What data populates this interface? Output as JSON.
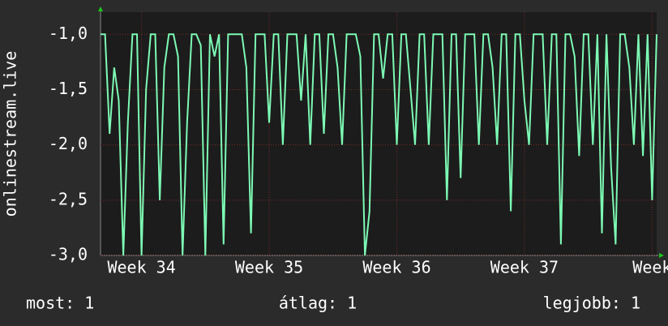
{
  "chart_data": {
    "type": "line",
    "ylabel": "onlinestream.live",
    "x": [
      0,
      0.25,
      0.5,
      0.75,
      1,
      1.25,
      1.5,
      1.75,
      2,
      2.25,
      2.5,
      2.75,
      3,
      3.25,
      3.5,
      3.75,
      4,
      4.25,
      4.5,
      4.75,
      5,
      5.25,
      5.5,
      5.75,
      6,
      6.25,
      6.5,
      6.75,
      7,
      7.25,
      7.5,
      7.75,
      8,
      8.25,
      8.5,
      8.75,
      9,
      9.25,
      9.5,
      9.75,
      10,
      10.25,
      10.5,
      10.75,
      11,
      11.25,
      11.5,
      11.75,
      12,
      12.25,
      12.5,
      12.75,
      13,
      13.25,
      13.5,
      13.75,
      14,
      14.25,
      14.5,
      14.75,
      15,
      15.25,
      15.5,
      15.75,
      16,
      16.25,
      16.5,
      16.75,
      17,
      17.25,
      17.5,
      17.75,
      18,
      18.25,
      18.5,
      18.75,
      19,
      19.25,
      19.5,
      19.75,
      20,
      20.25,
      20.5,
      20.75,
      21,
      21.25,
      21.5,
      21.75,
      22,
      22.25,
      22.5,
      22.75,
      23,
      23.25,
      23.5,
      23.75,
      24,
      24.25,
      24.5,
      24.75,
      25,
      25.25,
      25.5,
      25.75,
      26,
      26.25,
      26.5,
      26.75,
      27,
      27.25,
      27.5,
      27.75,
      28,
      28.25,
      28.5,
      28.75,
      29,
      29.25,
      29.5,
      29.75,
      30,
      30.25,
      30.5
    ],
    "values": [
      -1,
      -1,
      -1.9,
      -1.3,
      -1.6,
      -3,
      -1.8,
      -1,
      -1,
      -3,
      -1.5,
      -1,
      -1,
      -2.5,
      -1.3,
      -1,
      -1,
      -1.2,
      -3,
      -1.8,
      -1,
      -1,
      -1.1,
      -3,
      -1,
      -1.2,
      -1,
      -2.9,
      -1,
      -1,
      -1,
      -1,
      -1.3,
      -2.8,
      -1,
      -1,
      -1,
      -1.8,
      -1,
      -1,
      -2,
      -1,
      -1,
      -1,
      -1.6,
      -1,
      -2,
      -1,
      -1,
      -1.9,
      -1,
      -1,
      -1.3,
      -2,
      -1,
      -1,
      -1,
      -1.2,
      -3,
      -2.6,
      -1,
      -1,
      -1.4,
      -1,
      -1,
      -2,
      -1,
      -1,
      -1.5,
      -2,
      -1,
      -1,
      -2,
      -1,
      -1,
      -1,
      -2.5,
      -1,
      -1,
      -2.3,
      -1,
      -1,
      -1,
      -2,
      -1,
      -1,
      -1.3,
      -2,
      -1,
      -1,
      -2.6,
      -1,
      -1,
      -1.6,
      -2,
      -1,
      -1,
      -1,
      -2,
      -1,
      -1,
      -2.9,
      -1,
      -1,
      -1.2,
      -2.1,
      -1,
      -1,
      -2,
      -1,
      -2.8,
      -1,
      -2.2,
      -2.9,
      -1,
      -1,
      -1.3,
      -2,
      -1,
      -2.1,
      -1,
      -2.5,
      -1
    ],
    "color": "#7dfab4",
    "xlim": [
      0,
      30.5
    ],
    "xticks": [
      {
        "value": 2.25,
        "label": "Week 34"
      },
      {
        "value": 9.25,
        "label": "Week 35"
      },
      {
        "value": 16.25,
        "label": "Week 36"
      },
      {
        "value": 23.25,
        "label": "Week 37"
      },
      {
        "value": 30.25,
        "label": "Week"
      }
    ],
    "ylim": [
      -3,
      -0.8
    ],
    "yticks": [
      {
        "value": -3,
        "label": "-3,0"
      },
      {
        "value": -2.5,
        "label": "-2,5"
      },
      {
        "value": -2,
        "label": "-2,0"
      },
      {
        "value": -1.5,
        "label": "-1,5"
      },
      {
        "value": -1,
        "label": "-1,0"
      }
    ],
    "grid": true,
    "stats": [
      "most: 1",
      "átlag: 1",
      "legjobb: 1"
    ]
  }
}
